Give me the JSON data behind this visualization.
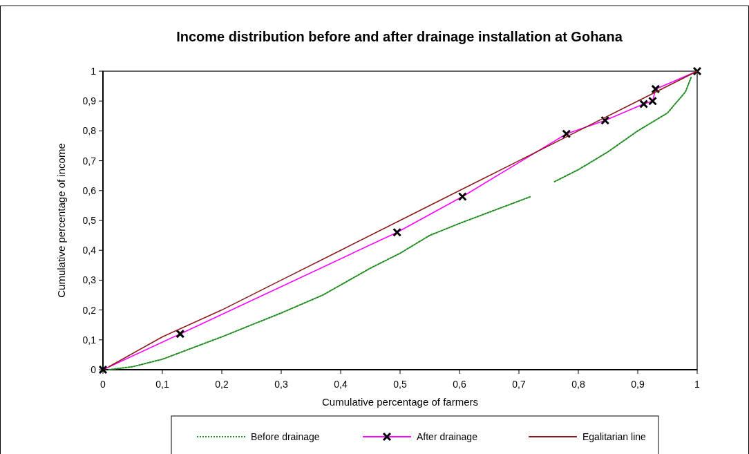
{
  "chart_data": {
    "type": "line",
    "title": "Income distribution before and after drainage installation at Gohana",
    "xlabel": "Cumulative percentage of farmers",
    "ylabel": "Cumulative percentage of income",
    "xlim": [
      0,
      1
    ],
    "ylim": [
      0,
      1
    ],
    "xticks": [
      0,
      {
        "value": 0.1,
        "label": "0,1"
      },
      {
        "value": 0.2,
        "label": "0,2"
      },
      {
        "value": 0.3,
        "label": "0,3"
      },
      {
        "value": 0.4,
        "label": "0,4"
      },
      {
        "value": 0.5,
        "label": "0,5"
      },
      {
        "value": 0.6,
        "label": "0,6"
      },
      {
        "value": 0.7,
        "label": "0,7"
      },
      {
        "value": 0.8,
        "label": "0,8"
      },
      {
        "value": 0.9,
        "label": "0,9"
      },
      1
    ],
    "yticks": [
      0,
      {
        "value": 0.1,
        "label": "0,1"
      },
      {
        "value": 0.2,
        "label": "0,2"
      },
      {
        "value": 0.3,
        "label": "0,3"
      },
      {
        "value": 0.4,
        "label": "0,4"
      },
      {
        "value": 0.5,
        "label": "0,5"
      },
      {
        "value": 0.6,
        "label": "0,6"
      },
      {
        "value": 0.7,
        "label": "0,7"
      },
      {
        "value": 0.8,
        "label": "0,8"
      },
      {
        "value": 0.9,
        "label": "0,9"
      },
      1
    ],
    "grid": false,
    "legend": "bottom",
    "series": [
      {
        "name": "Before drainage",
        "color": "#1e8c1e",
        "line_style": "dotted",
        "marker": "none",
        "x": [
          0.01,
          0.05,
          0.1,
          0.2,
          0.3,
          0.37,
          0.45,
          0.5,
          0.55,
          0.6,
          0.72,
          0.74,
          0.76,
          0.8,
          0.85,
          0.9,
          0.95,
          0.98,
          0.99
        ],
        "values": [
          0,
          0.01,
          0.035,
          0.11,
          0.19,
          0.25,
          0.34,
          0.39,
          0.45,
          0.49,
          0.58,
          null,
          0.63,
          0.67,
          0.73,
          0.8,
          0.86,
          0.93,
          0.98
        ]
      },
      {
        "name": "After drainage",
        "color": "#ff00ff",
        "line_style": "solid",
        "marker": "cross",
        "x": [
          0,
          0.13,
          0.495,
          0.605,
          0.78,
          0.845,
          0.91,
          0.925,
          0.93,
          1
        ],
        "values": [
          0,
          0.12,
          0.46,
          0.58,
          0.79,
          0.835,
          0.89,
          0.9,
          0.94,
          1
        ]
      },
      {
        "name": "Egalitarian line",
        "color": "#8b1a1a",
        "line_style": "solid",
        "marker": "none",
        "x": [
          0.01,
          0.1,
          0.2,
          0.3,
          0.4,
          0.5,
          0.6,
          0.7,
          0.8,
          0.9,
          1
        ],
        "values": [
          0.01,
          0.11,
          0.2,
          0.3,
          0.4,
          0.5,
          0.6,
          0.7,
          0.8,
          0.9,
          1
        ]
      }
    ]
  }
}
